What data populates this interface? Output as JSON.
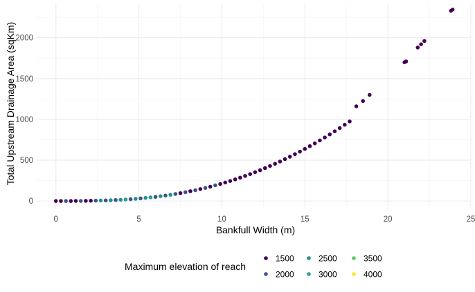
{
  "chart_data": {
    "type": "scatter",
    "title": "",
    "xlabel": "Bankfull Width (m)",
    "ylabel": "Total Upstream Drainage Area (sqKm)",
    "xlim": [
      -1.2,
      25
    ],
    "ylim": [
      -100,
      2420
    ],
    "x_ticks": [
      0,
      5,
      10,
      15,
      20,
      25
    ],
    "y_ticks": [
      0,
      500,
      1000,
      1500,
      2000
    ],
    "grid": true,
    "legend": {
      "title": "Maximum elevation of reach",
      "placement": "bottom",
      "entries": [
        {
          "label": "1500",
          "color": "#440154"
        },
        {
          "label": "2000",
          "color": "#3b528b"
        },
        {
          "label": "2500",
          "color": "#21908c"
        },
        {
          "label": "3000",
          "color": "#2a9d8f"
        },
        {
          "label": "3500",
          "color": "#5ec962"
        },
        {
          "label": "4000",
          "color": "#fde725"
        }
      ]
    },
    "series": [
      {
        "points": [
          {
            "x": 0.0,
            "y": 0,
            "color": "#440154"
          },
          {
            "x": 0.3,
            "y": 0,
            "color": "#440154"
          },
          {
            "x": 0.6,
            "y": 0,
            "color": "#3b528b"
          },
          {
            "x": 0.9,
            "y": 0,
            "color": "#440154"
          },
          {
            "x": 1.2,
            "y": 1,
            "color": "#440154"
          },
          {
            "x": 1.5,
            "y": 1,
            "color": "#3b528b"
          },
          {
            "x": 1.8,
            "y": 2,
            "color": "#440154"
          },
          {
            "x": 2.1,
            "y": 3,
            "color": "#440154"
          },
          {
            "x": 2.4,
            "y": 4,
            "color": "#3b528b"
          },
          {
            "x": 2.7,
            "y": 6,
            "color": "#21908c"
          },
          {
            "x": 3.0,
            "y": 7,
            "color": "#3b528b"
          },
          {
            "x": 3.3,
            "y": 9,
            "color": "#21908c"
          },
          {
            "x": 3.6,
            "y": 12,
            "color": "#3b528b"
          },
          {
            "x": 3.9,
            "y": 15,
            "color": "#21908c"
          },
          {
            "x": 4.2,
            "y": 18,
            "color": "#2a9d8f"
          },
          {
            "x": 4.5,
            "y": 22,
            "color": "#3b528b"
          },
          {
            "x": 4.8,
            "y": 27,
            "color": "#21908c"
          },
          {
            "x": 5.1,
            "y": 32,
            "color": "#3b528b"
          },
          {
            "x": 5.4,
            "y": 38,
            "color": "#21908c"
          },
          {
            "x": 5.7,
            "y": 44,
            "color": "#2a9d8f"
          },
          {
            "x": 6.0,
            "y": 51,
            "color": "#3b528b"
          },
          {
            "x": 6.3,
            "y": 59,
            "color": "#21908c"
          },
          {
            "x": 6.6,
            "y": 67,
            "color": "#3b528b"
          },
          {
            "x": 6.9,
            "y": 76,
            "color": "#21908c"
          },
          {
            "x": 7.2,
            "y": 86,
            "color": "#3b528b"
          },
          {
            "x": 7.5,
            "y": 96,
            "color": "#440154"
          },
          {
            "x": 7.8,
            "y": 108,
            "color": "#3b528b"
          },
          {
            "x": 8.1,
            "y": 120,
            "color": "#440154"
          },
          {
            "x": 8.4,
            "y": 132,
            "color": "#3b528b"
          },
          {
            "x": 8.7,
            "y": 146,
            "color": "#440154"
          },
          {
            "x": 9.0,
            "y": 160,
            "color": "#3b528b"
          },
          {
            "x": 9.3,
            "y": 175,
            "color": "#440154"
          },
          {
            "x": 9.6,
            "y": 192,
            "color": "#3b528b"
          },
          {
            "x": 9.9,
            "y": 208,
            "color": "#440154"
          },
          {
            "x": 10.2,
            "y": 226,
            "color": "#440154"
          },
          {
            "x": 10.5,
            "y": 245,
            "color": "#440154"
          },
          {
            "x": 10.8,
            "y": 265,
            "color": "#440154"
          },
          {
            "x": 11.1,
            "y": 286,
            "color": "#440154"
          },
          {
            "x": 11.4,
            "y": 307,
            "color": "#440154"
          },
          {
            "x": 11.7,
            "y": 330,
            "color": "#440154"
          },
          {
            "x": 12.0,
            "y": 353,
            "color": "#440154"
          },
          {
            "x": 12.3,
            "y": 377,
            "color": "#440154"
          },
          {
            "x": 12.6,
            "y": 403,
            "color": "#440154"
          },
          {
            "x": 12.9,
            "y": 429,
            "color": "#440154"
          },
          {
            "x": 13.2,
            "y": 456,
            "color": "#440154"
          },
          {
            "x": 13.5,
            "y": 484,
            "color": "#440154"
          },
          {
            "x": 13.8,
            "y": 513,
            "color": "#440154"
          },
          {
            "x": 14.1,
            "y": 543,
            "color": "#440154"
          },
          {
            "x": 14.4,
            "y": 574,
            "color": "#440154"
          },
          {
            "x": 14.7,
            "y": 605,
            "color": "#440154"
          },
          {
            "x": 15.0,
            "y": 638,
            "color": "#440154"
          },
          {
            "x": 15.3,
            "y": 672,
            "color": "#440154"
          },
          {
            "x": 15.6,
            "y": 706,
            "color": "#440154"
          },
          {
            "x": 15.9,
            "y": 742,
            "color": "#440154"
          },
          {
            "x": 16.2,
            "y": 778,
            "color": "#440154"
          },
          {
            "x": 16.5,
            "y": 816,
            "color": "#440154"
          },
          {
            "x": 16.8,
            "y": 854,
            "color": "#440154"
          },
          {
            "x": 17.1,
            "y": 893,
            "color": "#440154"
          },
          {
            "x": 17.4,
            "y": 934,
            "color": "#440154"
          },
          {
            "x": 17.7,
            "y": 975,
            "color": "#440154"
          },
          {
            "x": 18.1,
            "y": 1160,
            "color": "#440154"
          },
          {
            "x": 18.5,
            "y": 1225,
            "color": "#440154"
          },
          {
            "x": 18.9,
            "y": 1300,
            "color": "#440154"
          },
          {
            "x": 21.0,
            "y": 1700,
            "color": "#440154"
          },
          {
            "x": 21.1,
            "y": 1710,
            "color": "#440154"
          },
          {
            "x": 21.8,
            "y": 1880,
            "color": "#440154"
          },
          {
            "x": 22.0,
            "y": 1920,
            "color": "#440154"
          },
          {
            "x": 22.2,
            "y": 1960,
            "color": "#440154"
          },
          {
            "x": 23.8,
            "y": 2330,
            "color": "#440154"
          },
          {
            "x": 23.9,
            "y": 2345,
            "color": "#440154"
          }
        ]
      }
    ]
  }
}
